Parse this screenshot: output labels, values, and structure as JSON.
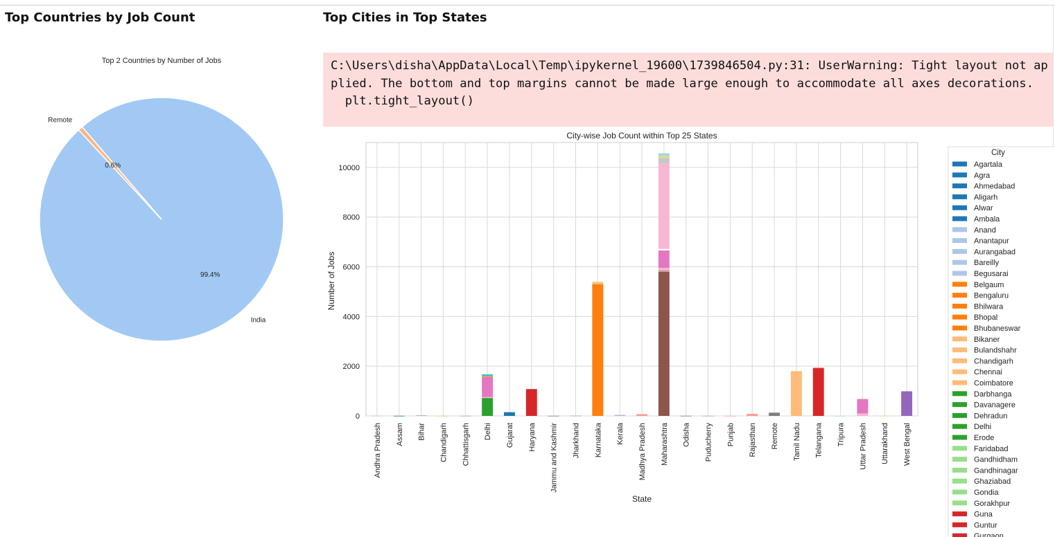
{
  "cells": {
    "left_heading": "Top Countries by Job Count",
    "right_heading": "Top Cities in Top States",
    "warning_lines": [
      "C:\\Users\\disha\\AppData\\Local\\Temp\\ipykernel_19600\\1739846504.py:31: UserWarning: Tight layout not applied. The bottom and top margins cannot be made large enough to accommodate all axes decorations.",
      "  plt.tight_layout()"
    ]
  },
  "chart_data": [
    {
      "type": "pie",
      "title": "Top 2 Countries by Number of Jobs",
      "labels": [
        "India",
        "Remote"
      ],
      "values": [
        99.4,
        0.6
      ],
      "pct_labels": [
        "99.4%",
        "0.6%"
      ],
      "colors": [
        "#a1c9f4",
        "#ffb482"
      ]
    },
    {
      "type": "bar",
      "stacked": true,
      "title": "City-wise Job Count within Top 25 States",
      "xlabel": "State",
      "ylabel": "Number of Jobs",
      "ylim": [
        0,
        11000
      ],
      "yticks": [
        0,
        2000,
        4000,
        6000,
        8000,
        10000
      ],
      "grid": true,
      "legend_position": "right",
      "categories": [
        "Andhra Pradesh",
        "Assam",
        "Bihar",
        "Chandigarh",
        "Chhattisgarh",
        "Delhi",
        "Gujarat",
        "Haryana",
        "Jammu and Kashmir",
        "Jharkhand",
        "Karnataka",
        "Kerala",
        "Madhya Pradesh",
        "Maharashtra",
        "Odisha",
        "Puducherry",
        "Punjab",
        "Rajasthan",
        "Remote",
        "Tamil Nadu",
        "Telangana",
        "Tripura",
        "Uttar Pradesh",
        "Uttarakhand",
        "West Bengal"
      ],
      "stacks": [
        [
          {
            "v": 10,
            "c": "#aec7e8"
          }
        ],
        [
          {
            "v": 5,
            "c": "#1f77b4"
          }
        ],
        [
          {
            "v": 30,
            "c": "#c5b0d5"
          }
        ],
        [
          {
            "v": 5,
            "c": "#ffbb78"
          }
        ],
        [
          {
            "v": 5,
            "c": "#c49c94"
          }
        ],
        [
          {
            "v": 720,
            "c": "#2ca02c"
          },
          {
            "v": 40,
            "c": "#f7b6d2"
          },
          {
            "v": 820,
            "c": "#e377c2"
          },
          {
            "v": 40,
            "c": "#bcbd22"
          },
          {
            "v": 50,
            "c": "#17becf"
          }
        ],
        [
          {
            "v": 150,
            "c": "#1f77b4"
          }
        ],
        [
          {
            "v": 1080,
            "c": "#d62728"
          }
        ],
        [
          {
            "v": 5,
            "c": "#9467bd"
          }
        ],
        [
          {
            "v": 10,
            "c": "#c49c94"
          }
        ],
        [
          {
            "v": 5300,
            "c": "#ff7f0e"
          },
          {
            "v": 60,
            "c": "#ffbb78"
          },
          {
            "v": 40,
            "c": "#dbdb8d"
          }
        ],
        [
          {
            "v": 40,
            "c": "#c5b0d5"
          }
        ],
        [
          {
            "v": 70,
            "c": "#ff9896"
          }
        ],
        [
          {
            "v": 5800,
            "c": "#8c564b"
          },
          {
            "v": 60,
            "c": "#c49c94"
          },
          {
            "v": 100,
            "c": "#f7b6d2"
          },
          {
            "v": 700,
            "c": "#e377c2"
          },
          {
            "v": 60,
            "c": "#ffffff"
          },
          {
            "v": 3450,
            "c": "#f7b6d2"
          },
          {
            "v": 200,
            "c": "#c7c7c7"
          },
          {
            "v": 100,
            "c": "#dbdb8d"
          },
          {
            "v": 100,
            "c": "#9edae5"
          }
        ],
        [
          {
            "v": 5,
            "c": "#9467bd"
          }
        ],
        [
          {
            "v": 5,
            "c": "#c49c94"
          }
        ],
        [
          {
            "v": 5,
            "c": "#ff9896"
          }
        ],
        [
          {
            "v": 80,
            "c": "#ff9896"
          }
        ],
        [
          {
            "v": 130,
            "c": "#7f7f7f"
          }
        ],
        [
          {
            "v": 1800,
            "c": "#ffbb78"
          }
        ],
        [
          {
            "v": 1920,
            "c": "#d62728"
          },
          {
            "v": 30,
            "c": "#ff9896"
          }
        ],
        [
          {
            "v": 5,
            "c": "#9edae5"
          }
        ],
        [
          {
            "v": 100,
            "c": "#f7b6d2"
          },
          {
            "v": 580,
            "c": "#e377c2"
          }
        ],
        [
          {
            "v": 5,
            "c": "#dbdb8d"
          }
        ],
        [
          {
            "v": 990,
            "c": "#9467bd"
          }
        ]
      ],
      "legend_title": "City",
      "legend": [
        {
          "name": "Agartala",
          "color": "#1f77b4"
        },
        {
          "name": "Agra",
          "color": "#1f77b4"
        },
        {
          "name": "Ahmedabad",
          "color": "#1f77b4"
        },
        {
          "name": "Aligarh",
          "color": "#1f77b4"
        },
        {
          "name": "Alwar",
          "color": "#1f77b4"
        },
        {
          "name": "Ambala",
          "color": "#1f77b4"
        },
        {
          "name": "Anand",
          "color": "#aec7e8"
        },
        {
          "name": "Anantapur",
          "color": "#aec7e8"
        },
        {
          "name": "Aurangabad",
          "color": "#aec7e8"
        },
        {
          "name": "Bareilly",
          "color": "#aec7e8"
        },
        {
          "name": "Begusarai",
          "color": "#aec7e8"
        },
        {
          "name": "Belgaum",
          "color": "#ff7f0e"
        },
        {
          "name": "Bengaluru",
          "color": "#ff7f0e"
        },
        {
          "name": "Bhilwara",
          "color": "#ff7f0e"
        },
        {
          "name": "Bhopal",
          "color": "#ff7f0e"
        },
        {
          "name": "Bhubaneswar",
          "color": "#ff7f0e"
        },
        {
          "name": "Bikaner",
          "color": "#ffbb78"
        },
        {
          "name": "Bulandshahr",
          "color": "#ffbb78"
        },
        {
          "name": "Chandigarh",
          "color": "#ffbb78"
        },
        {
          "name": "Chennai",
          "color": "#ffbb78"
        },
        {
          "name": "Coimbatore",
          "color": "#ffbb78"
        },
        {
          "name": "Darbhanga",
          "color": "#2ca02c"
        },
        {
          "name": "Davanagere",
          "color": "#2ca02c"
        },
        {
          "name": "Dehradun",
          "color": "#2ca02c"
        },
        {
          "name": "Delhi",
          "color": "#2ca02c"
        },
        {
          "name": "Erode",
          "color": "#2ca02c"
        },
        {
          "name": "Faridabad",
          "color": "#98df8a"
        },
        {
          "name": "Gandhidham",
          "color": "#98df8a"
        },
        {
          "name": "Gandhinagar",
          "color": "#98df8a"
        },
        {
          "name": "Ghaziabad",
          "color": "#98df8a"
        },
        {
          "name": "Gondia",
          "color": "#98df8a"
        },
        {
          "name": "Gorakhpur",
          "color": "#98df8a"
        },
        {
          "name": "Guna",
          "color": "#d62728"
        },
        {
          "name": "Guntur",
          "color": "#d62728"
        },
        {
          "name": "Gurgaon",
          "color": "#d62728"
        }
      ]
    }
  ]
}
